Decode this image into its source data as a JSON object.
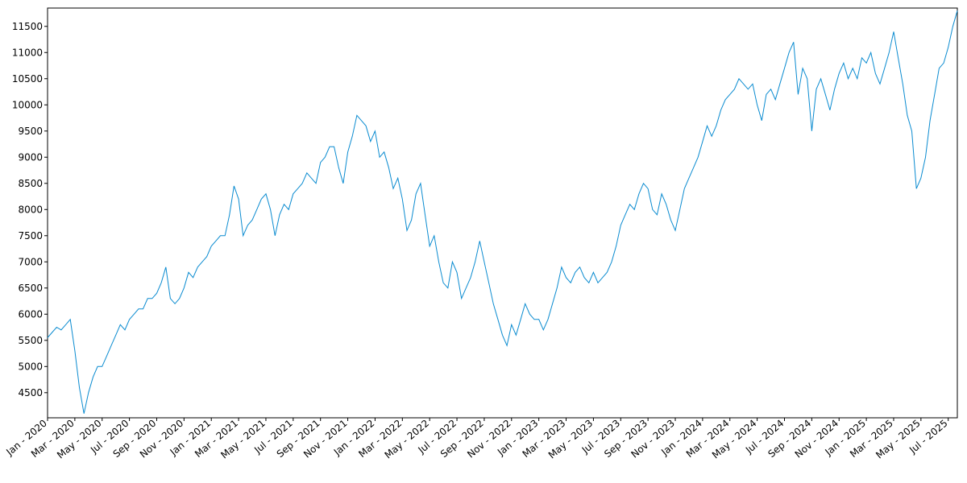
{
  "chart_data": {
    "type": "line",
    "series": [
      {
        "color": "#0a8bd0",
        "values": [
          5550,
          5650,
          5750,
          5700,
          5800,
          5900,
          5300,
          4600,
          4100,
          4500,
          4800,
          5000,
          5000,
          5200,
          5400,
          5600,
          5800,
          5700,
          5900,
          6000,
          6100,
          6100,
          6300,
          6300,
          6400,
          6600,
          6900,
          6300,
          6200,
          6300,
          6500,
          6800,
          6700,
          6900,
          7000,
          7100,
          7300,
          7400,
          7500,
          7500,
          7900,
          8450,
          8200,
          7500,
          7700,
          7800,
          8000,
          8200,
          8300,
          8000,
          7500,
          7900,
          8100,
          8000,
          8300,
          8400,
          8500,
          8700,
          8600,
          8500,
          8900,
          9000,
          9200,
          9200,
          8800,
          8500,
          9100,
          9400,
          9800,
          9700,
          9600,
          9300,
          9500,
          9000,
          9100,
          8800,
          8400,
          8600,
          8200,
          7600,
          7800,
          8300,
          8500,
          7900,
          7300,
          7500,
          7000,
          6600,
          6500,
          7000,
          6800,
          6300,
          6500,
          6700,
          7000,
          7400,
          7000,
          6600,
          6200,
          5900,
          5600,
          5400,
          5800,
          5600,
          5900,
          6200,
          6000,
          5900,
          5900,
          5700,
          5900,
          6200,
          6500,
          6900,
          6700,
          6600,
          6800,
          6900,
          6700,
          6600,
          6800,
          6600,
          6700,
          6800,
          7000,
          7300,
          7700,
          7900,
          8100,
          8000,
          8300,
          8500,
          8400,
          8000,
          7900,
          8300,
          8100,
          7800,
          7600,
          8000,
          8400,
          8600,
          8800,
          9000,
          9300,
          9600,
          9400,
          9600,
          9900,
          10100,
          10200,
          10300,
          10500,
          10400,
          10300,
          10400,
          10000,
          9700,
          10200,
          10300,
          10100,
          10400,
          10700,
          11000,
          11200,
          10200,
          10700,
          10500,
          9500,
          10300,
          10500,
          10200,
          9900,
          10300,
          10600,
          10800,
          10500,
          10700,
          10500,
          10900,
          10800,
          11000,
          10600,
          10400,
          10700,
          11000,
          11400,
          10900,
          10400,
          9800,
          9500,
          8400,
          8600,
          9000,
          9700,
          10200,
          10700,
          10800,
          11100,
          11500,
          11800
        ]
      }
    ],
    "xlim": [
      0,
      200
    ],
    "xticks": [
      {
        "value": 0,
        "label": "Jan - 2020"
      },
      {
        "value": 6,
        "label": "Mar - 2020"
      },
      {
        "value": 12,
        "label": "May - 2020"
      },
      {
        "value": 18,
        "label": "Jul - 2020"
      },
      {
        "value": 24,
        "label": "Sep - 2020"
      },
      {
        "value": 30,
        "label": "Nov - 2020"
      },
      {
        "value": 36,
        "label": "Jan - 2021"
      },
      {
        "value": 42,
        "label": "Mar - 2021"
      },
      {
        "value": 48,
        "label": "May - 2021"
      },
      {
        "value": 54,
        "label": "Jul - 2021"
      },
      {
        "value": 60,
        "label": "Sep - 2021"
      },
      {
        "value": 66,
        "label": "Nov - 2021"
      },
      {
        "value": 72,
        "label": "Jan - 2022"
      },
      {
        "value": 78,
        "label": "Mar - 2022"
      },
      {
        "value": 84,
        "label": "May - 2022"
      },
      {
        "value": 90,
        "label": "Jul - 2022"
      },
      {
        "value": 96,
        "label": "Sep - 2022"
      },
      {
        "value": 102,
        "label": "Nov - 2022"
      },
      {
        "value": 108,
        "label": "Jan - 2023"
      },
      {
        "value": 114,
        "label": "Mar - 2023"
      },
      {
        "value": 120,
        "label": "May - 2023"
      },
      {
        "value": 126,
        "label": "Jul - 2023"
      },
      {
        "value": 132,
        "label": "Sep - 2023"
      },
      {
        "value": 138,
        "label": "Nov - 2023"
      },
      {
        "value": 144,
        "label": "Jan - 2024"
      },
      {
        "value": 150,
        "label": "Mar - 2024"
      },
      {
        "value": 156,
        "label": "May - 2024"
      },
      {
        "value": 162,
        "label": "Jul - 2024"
      },
      {
        "value": 168,
        "label": "Sep - 2024"
      },
      {
        "value": 174,
        "label": "Nov - 2024"
      },
      {
        "value": 180,
        "label": "Jan - 2025"
      },
      {
        "value": 186,
        "label": "Mar - 2025"
      },
      {
        "value": 192,
        "label": "May - 2025"
      },
      {
        "value": 198,
        "label": "Jul - 2025"
      }
    ],
    "ylim": [
      4020,
      11850
    ],
    "yticks": [
      4500,
      5000,
      5500,
      6000,
      6500,
      7000,
      7500,
      8000,
      8500,
      9000,
      9500,
      10000,
      10500,
      11000,
      11500
    ],
    "grid": false
  }
}
